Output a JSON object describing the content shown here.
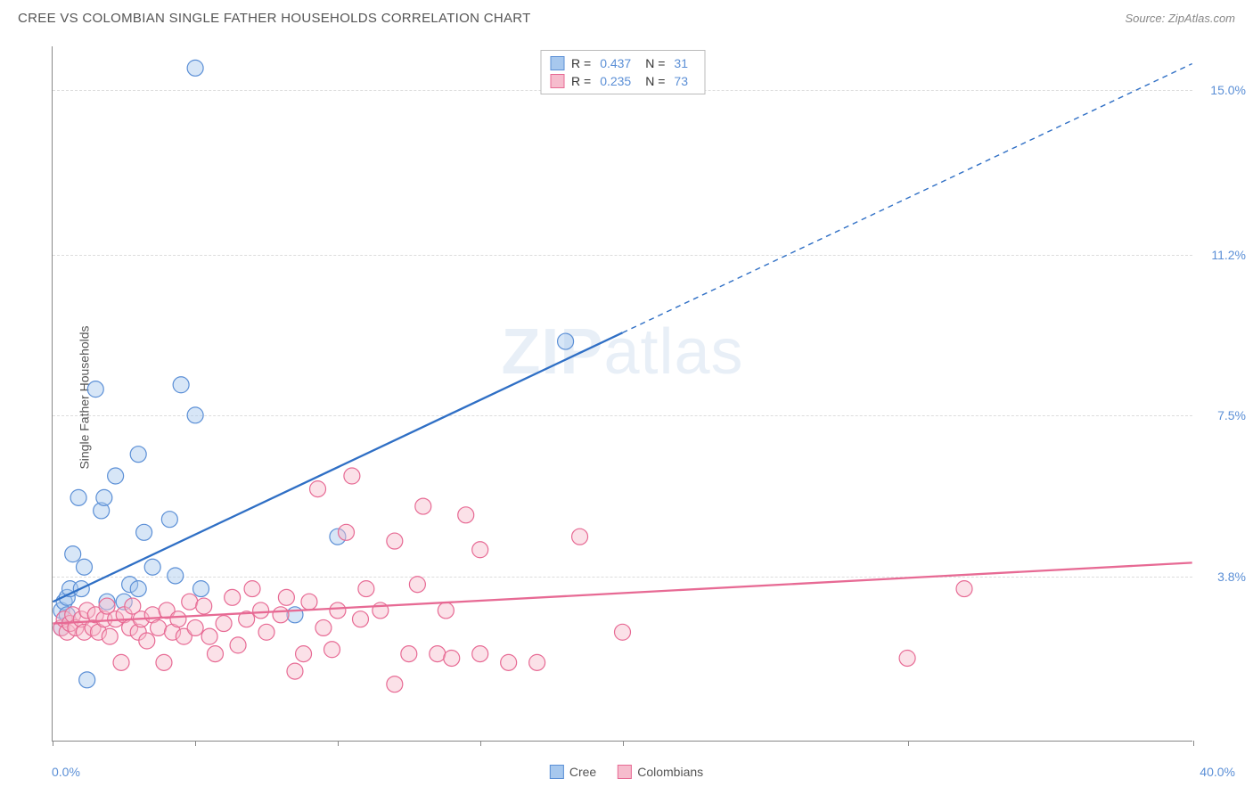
{
  "title": "CREE VS COLOMBIAN SINGLE FATHER HOUSEHOLDS CORRELATION CHART",
  "source": "Source: ZipAtlas.com",
  "ylabel": "Single Father Households",
  "watermark_bold": "ZIP",
  "watermark_light": "atlas",
  "chart": {
    "type": "scatter",
    "background_color": "#ffffff",
    "grid_color": "#dddddd",
    "axis_color": "#888888",
    "marker_radius": 9,
    "marker_opacity": 0.45,
    "marker_stroke_width": 1.2,
    "xlim": [
      0,
      40
    ],
    "ylim": [
      0,
      16
    ],
    "xtick_positions": [
      0,
      5,
      10,
      15,
      20,
      30,
      40
    ],
    "ytick_labels": [
      {
        "pos": 15.0,
        "label": "15.0%"
      },
      {
        "pos": 11.2,
        "label": "11.2%"
      },
      {
        "pos": 7.5,
        "label": "7.5%"
      },
      {
        "pos": 3.8,
        "label": "3.8%"
      }
    ],
    "x_min_label": "0.0%",
    "x_max_label": "40.0%",
    "series": [
      {
        "name": "Cree",
        "fill_color": "#a7c8ee",
        "stroke_color": "#5b8fd6",
        "line_color": "#2f6fc5",
        "line_width": 2.3,
        "r_value": "0.437",
        "n_value": "31",
        "trend": {
          "x1": 0,
          "y1": 3.2,
          "x2": 20,
          "y2": 9.4,
          "extend_x": 40,
          "extend_y": 15.6
        },
        "points": [
          [
            0.3,
            2.6
          ],
          [
            0.3,
            3.0
          ],
          [
            0.4,
            3.2
          ],
          [
            0.5,
            2.9
          ],
          [
            0.5,
            3.3
          ],
          [
            0.6,
            3.5
          ],
          [
            0.7,
            4.3
          ],
          [
            0.9,
            5.6
          ],
          [
            1.0,
            3.5
          ],
          [
            1.1,
            4.0
          ],
          [
            1.2,
            1.4
          ],
          [
            1.5,
            8.1
          ],
          [
            1.7,
            5.3
          ],
          [
            1.8,
            5.6
          ],
          [
            1.9,
            3.2
          ],
          [
            2.2,
            6.1
          ],
          [
            2.5,
            3.2
          ],
          [
            2.7,
            3.6
          ],
          [
            3.0,
            6.6
          ],
          [
            3.0,
            3.5
          ],
          [
            3.2,
            4.8
          ],
          [
            3.5,
            4.0
          ],
          [
            4.1,
            5.1
          ],
          [
            4.3,
            3.8
          ],
          [
            4.5,
            8.2
          ],
          [
            5.0,
            7.5
          ],
          [
            5.0,
            15.5
          ],
          [
            5.2,
            3.5
          ],
          [
            8.5,
            2.9
          ],
          [
            10.0,
            4.7
          ],
          [
            18.0,
            9.2
          ]
        ]
      },
      {
        "name": "Colombians",
        "fill_color": "#f6bccd",
        "stroke_color": "#e76a94",
        "line_color": "#e76a94",
        "line_width": 2.3,
        "r_value": "0.235",
        "n_value": "73",
        "trend": {
          "x1": 0,
          "y1": 2.7,
          "x2": 40,
          "y2": 4.1
        },
        "points": [
          [
            0.3,
            2.6
          ],
          [
            0.4,
            2.8
          ],
          [
            0.5,
            2.5
          ],
          [
            0.6,
            2.7
          ],
          [
            0.7,
            2.9
          ],
          [
            0.8,
            2.6
          ],
          [
            1.0,
            2.8
          ],
          [
            1.1,
            2.5
          ],
          [
            1.2,
            3.0
          ],
          [
            1.4,
            2.6
          ],
          [
            1.5,
            2.9
          ],
          [
            1.6,
            2.5
          ],
          [
            1.8,
            2.8
          ],
          [
            1.9,
            3.1
          ],
          [
            2.0,
            2.4
          ],
          [
            2.2,
            2.8
          ],
          [
            2.4,
            1.8
          ],
          [
            2.5,
            2.9
          ],
          [
            2.7,
            2.6
          ],
          [
            2.8,
            3.1
          ],
          [
            3.0,
            2.5
          ],
          [
            3.1,
            2.8
          ],
          [
            3.3,
            2.3
          ],
          [
            3.5,
            2.9
          ],
          [
            3.7,
            2.6
          ],
          [
            3.9,
            1.8
          ],
          [
            4.0,
            3.0
          ],
          [
            4.2,
            2.5
          ],
          [
            4.4,
            2.8
          ],
          [
            4.6,
            2.4
          ],
          [
            4.8,
            3.2
          ],
          [
            5.0,
            2.6
          ],
          [
            5.3,
            3.1
          ],
          [
            5.5,
            2.4
          ],
          [
            5.7,
            2.0
          ],
          [
            6.0,
            2.7
          ],
          [
            6.3,
            3.3
          ],
          [
            6.5,
            2.2
          ],
          [
            6.8,
            2.8
          ],
          [
            7.0,
            3.5
          ],
          [
            7.3,
            3.0
          ],
          [
            7.5,
            2.5
          ],
          [
            8.0,
            2.9
          ],
          [
            8.2,
            3.3
          ],
          [
            8.5,
            1.6
          ],
          [
            8.8,
            2.0
          ],
          [
            9.0,
            3.2
          ],
          [
            9.3,
            5.8
          ],
          [
            9.5,
            2.6
          ],
          [
            9.8,
            2.1
          ],
          [
            10.0,
            3.0
          ],
          [
            10.3,
            4.8
          ],
          [
            10.5,
            6.1
          ],
          [
            10.8,
            2.8
          ],
          [
            11.0,
            3.5
          ],
          [
            11.5,
            3.0
          ],
          [
            12.0,
            4.6
          ],
          [
            12.0,
            1.3
          ],
          [
            12.5,
            2.0
          ],
          [
            12.8,
            3.6
          ],
          [
            13.0,
            5.4
          ],
          [
            13.5,
            2.0
          ],
          [
            13.8,
            3.0
          ],
          [
            14.0,
            1.9
          ],
          [
            14.5,
            5.2
          ],
          [
            15.0,
            4.4
          ],
          [
            15.0,
            2.0
          ],
          [
            16.0,
            1.8
          ],
          [
            17.0,
            1.8
          ],
          [
            18.5,
            4.7
          ],
          [
            20.0,
            2.5
          ],
          [
            30.0,
            1.9
          ],
          [
            32.0,
            3.5
          ]
        ]
      }
    ],
    "legend_bottom": [
      {
        "swatch_fill": "#a7c8ee",
        "swatch_stroke": "#5b8fd6",
        "label": "Cree"
      },
      {
        "swatch_fill": "#f6bccd",
        "swatch_stroke": "#e76a94",
        "label": "Colombians"
      }
    ]
  }
}
